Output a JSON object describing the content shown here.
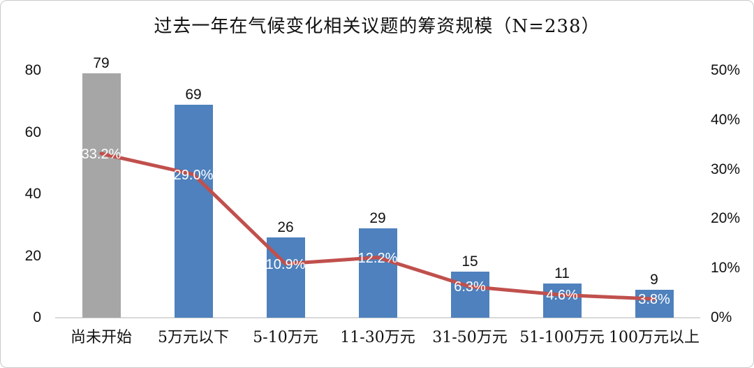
{
  "window": {
    "background": "#ffffff",
    "border_color": "#c9c9c9"
  },
  "chart_data": {
    "type": "bar",
    "subtype": "combo-bar-line",
    "title": "过去一年在气候变化相关议题的筹资规模（N=238）",
    "n_total": 238,
    "categories": [
      "尚未开始",
      "5万元以下",
      "5-10万元",
      "11-30万元",
      "31-50万元",
      "51-100万元",
      "100万元以上"
    ],
    "series": [
      {
        "type": "bar",
        "axis": "left",
        "values": [
          79,
          69,
          26,
          29,
          15,
          11,
          9
        ]
      },
      {
        "type": "line",
        "axis": "right",
        "values": [
          33.2,
          29.0,
          10.9,
          12.2,
          6.3,
          4.6,
          3.8
        ],
        "labels": [
          "33.2%",
          "29.0%",
          "10.9%",
          "12.2%",
          "6.3%",
          "4.6%",
          "3.8%"
        ]
      }
    ],
    "left_axis": {
      "min": 0,
      "max": 80,
      "ticks": [
        "0",
        "20",
        "40",
        "60",
        "80"
      ]
    },
    "right_axis": {
      "min": 0,
      "max": 50,
      "ticks": [
        "0%",
        "10%",
        "20%",
        "30%",
        "40%",
        "50%"
      ]
    },
    "grid": false,
    "legend": "none",
    "colors": {
      "bar_colors": [
        "#a6a6a6",
        "#4e81bd",
        "#4e81bd",
        "#4e81bd",
        "#4e81bd",
        "#4e81bd",
        "#4e81bd"
      ],
      "line": "#c0504d",
      "bar_value_label": "#111111",
      "line_value_label": "#ffffff",
      "axis_line": "#d9d9d9"
    }
  }
}
